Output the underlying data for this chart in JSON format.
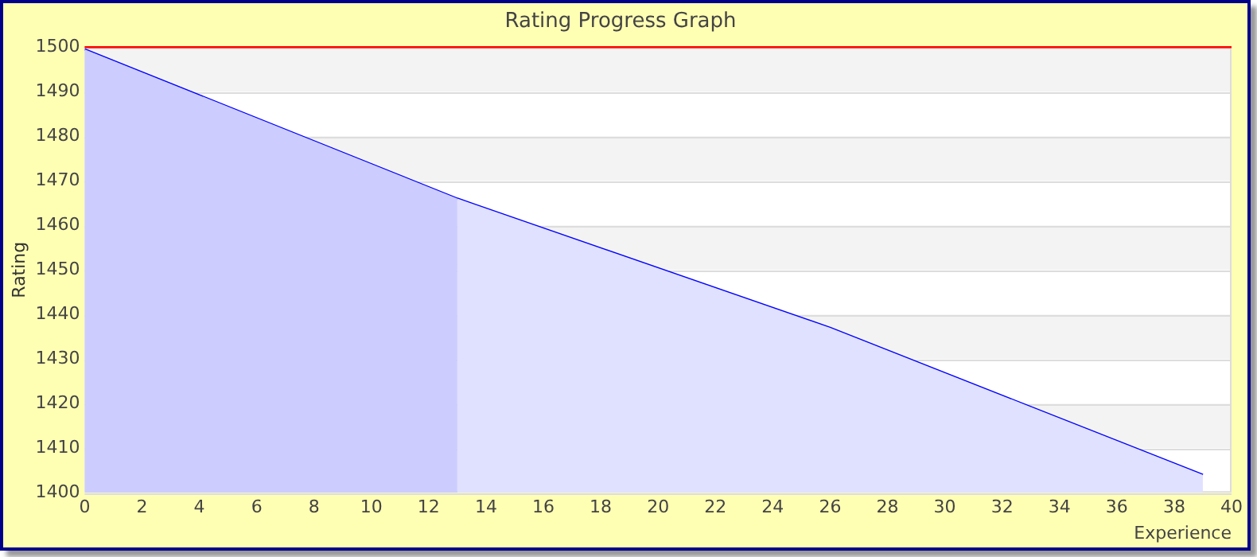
{
  "chart_data": {
    "type": "area",
    "title": "Rating Progress Graph",
    "xlabel": "Experience",
    "ylabel": "Rating",
    "xlim": [
      0,
      40
    ],
    "xticks": [
      0,
      2,
      4,
      6,
      8,
      10,
      12,
      14,
      16,
      18,
      20,
      22,
      24,
      26,
      28,
      30,
      32,
      34,
      36,
      38,
      40
    ],
    "ylim": [
      1400,
      1500
    ],
    "yticks": [
      1400,
      1410,
      1420,
      1430,
      1440,
      1450,
      1460,
      1470,
      1480,
      1490,
      1500
    ],
    "grid": "y",
    "legend": false,
    "marker": "none",
    "line_style": "solid",
    "series": [
      {
        "color": "#ccccff",
        "x": [
          0,
          13
        ],
        "values": [
          1499.5,
          1466
        ]
      },
      {
        "color": "#e0e0ff",
        "x": [
          13,
          26,
          39
        ],
        "values": [
          1466,
          1437,
          1404
        ]
      },
      {
        "type": "line",
        "color": "#0000ff",
        "x": [
          0,
          13,
          26,
          39
        ],
        "values": [
          1499.5,
          1466,
          1437,
          1404
        ]
      }
    ],
    "ref_lines": [
      {
        "axis": "y",
        "value": 1500,
        "color": "#ff0000"
      }
    ]
  }
}
